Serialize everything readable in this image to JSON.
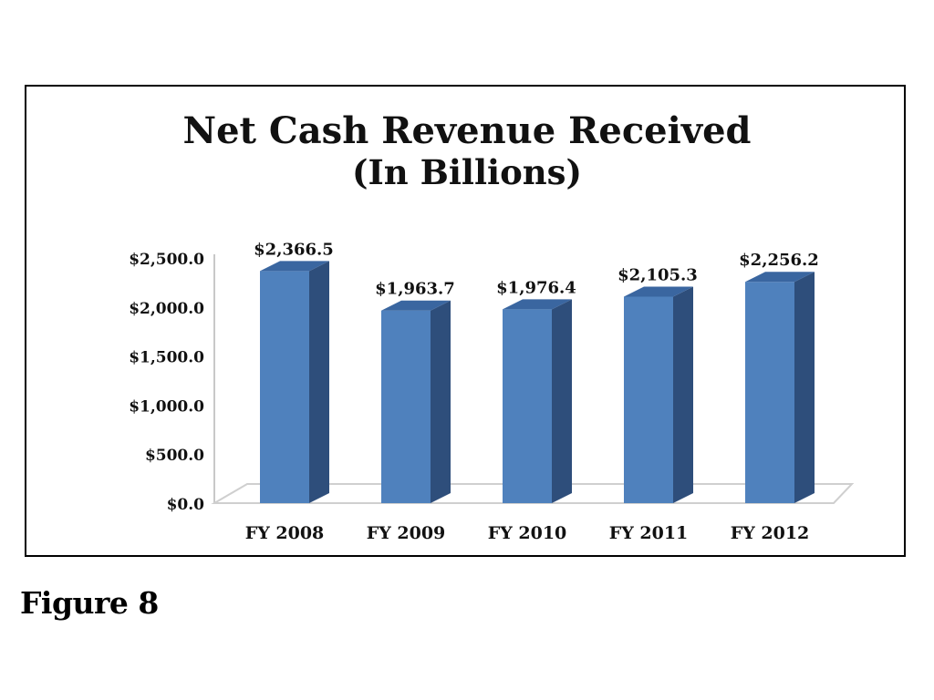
{
  "figure_caption": "Figure 8",
  "chart_data": {
    "type": "bar",
    "title": "Net Cash Revenue Received",
    "subtitle": "(In Billions)",
    "categories": [
      "FY 2008",
      "FY 2009",
      "FY 2010",
      "FY 2011",
      "FY 2012"
    ],
    "values": [
      2366.5,
      1963.7,
      1976.4,
      2105.3,
      2256.2
    ],
    "data_labels": [
      "$2,366.5",
      "$1,963.7",
      "$1,976.4",
      "$2,105.3",
      "$2,256.2"
    ],
    "y_ticks": [
      0,
      500,
      1000,
      1500,
      2000,
      2500
    ],
    "y_tick_labels": [
      "$0.0",
      "$500.0",
      "$1,000.0",
      "$1,500.0",
      "$2,000.0",
      "$2,500.0"
    ],
    "ylim": [
      0,
      2500
    ],
    "xlabel": "",
    "ylabel": "",
    "grid": false,
    "legend": "none",
    "bar_color": "#4F81BD",
    "bar_side_color": "#2E4E7B",
    "bar_top_color": "#3A66A0",
    "floor_color": "#CFCFCF"
  }
}
